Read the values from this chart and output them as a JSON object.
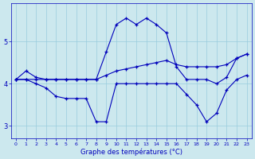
{
  "bg_color": "#cce8ee",
  "line_color": "#0000bb",
  "grid_color": "#99ccdd",
  "hours": [
    0,
    1,
    2,
    3,
    4,
    5,
    6,
    7,
    8,
    9,
    10,
    11,
    12,
    13,
    14,
    15,
    16,
    17,
    18,
    19,
    20,
    21,
    22,
    23
  ],
  "upper_line": [
    4.1,
    4.3,
    4.15,
    4.1,
    4.1,
    4.1,
    4.1,
    4.1,
    4.1,
    4.2,
    4.3,
    4.35,
    4.4,
    4.45,
    4.5,
    4.55,
    4.45,
    4.4,
    4.4,
    4.4,
    4.4,
    4.45,
    4.6,
    4.7
  ],
  "wavy_line": [
    4.1,
    4.1,
    4.1,
    4.1,
    4.1,
    4.1,
    4.1,
    4.1,
    4.1,
    4.75,
    5.4,
    5.55,
    5.4,
    5.55,
    5.4,
    5.2,
    4.4,
    4.1,
    4.1,
    4.1,
    4.0,
    4.15,
    4.6,
    4.7
  ],
  "lower_line": [
    4.1,
    4.1,
    4.0,
    3.9,
    3.7,
    3.65,
    3.65,
    3.65,
    3.1,
    3.1,
    4.0,
    4.0,
    4.0,
    4.0,
    4.0,
    4.0,
    4.0,
    3.75,
    3.5,
    3.1,
    3.3,
    3.85,
    4.1,
    4.2
  ],
  "xlabel": "Graphe des températures (°C)",
  "ylim": [
    2.7,
    5.9
  ],
  "yticks": [
    3,
    4,
    5
  ],
  "xlim": [
    -0.5,
    23.5
  ],
  "figsize": [
    3.2,
    2.0
  ],
  "dpi": 100
}
